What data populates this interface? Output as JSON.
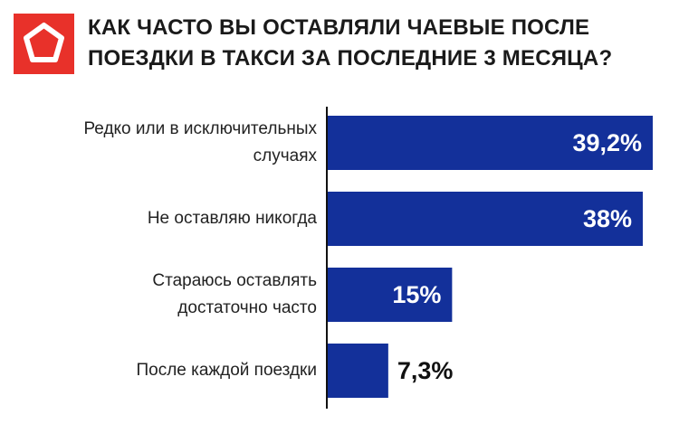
{
  "chart_data": {
    "type": "bar",
    "orientation": "horizontal",
    "title": "КАК ЧАСТО ВЫ ОСТАВЛЯЛИ ЧАЕВЫЕ ПОСЛЕ\nПОЕЗДКИ В ТАКСИ ЗА ПОСЛЕДНИЕ 3 МЕСЯЦА?",
    "categories": [
      "Редко или в исключительных\nслучаях",
      "Не оставляю никогда",
      "Стараюсь оставлять\nдостаточно часто",
      "После каждой поездки"
    ],
    "values": [
      39.2,
      38,
      15,
      7.3
    ],
    "value_labels": [
      "39,2%",
      "38%",
      "15%",
      "7,3%"
    ],
    "color": "#13309a"
  }
}
